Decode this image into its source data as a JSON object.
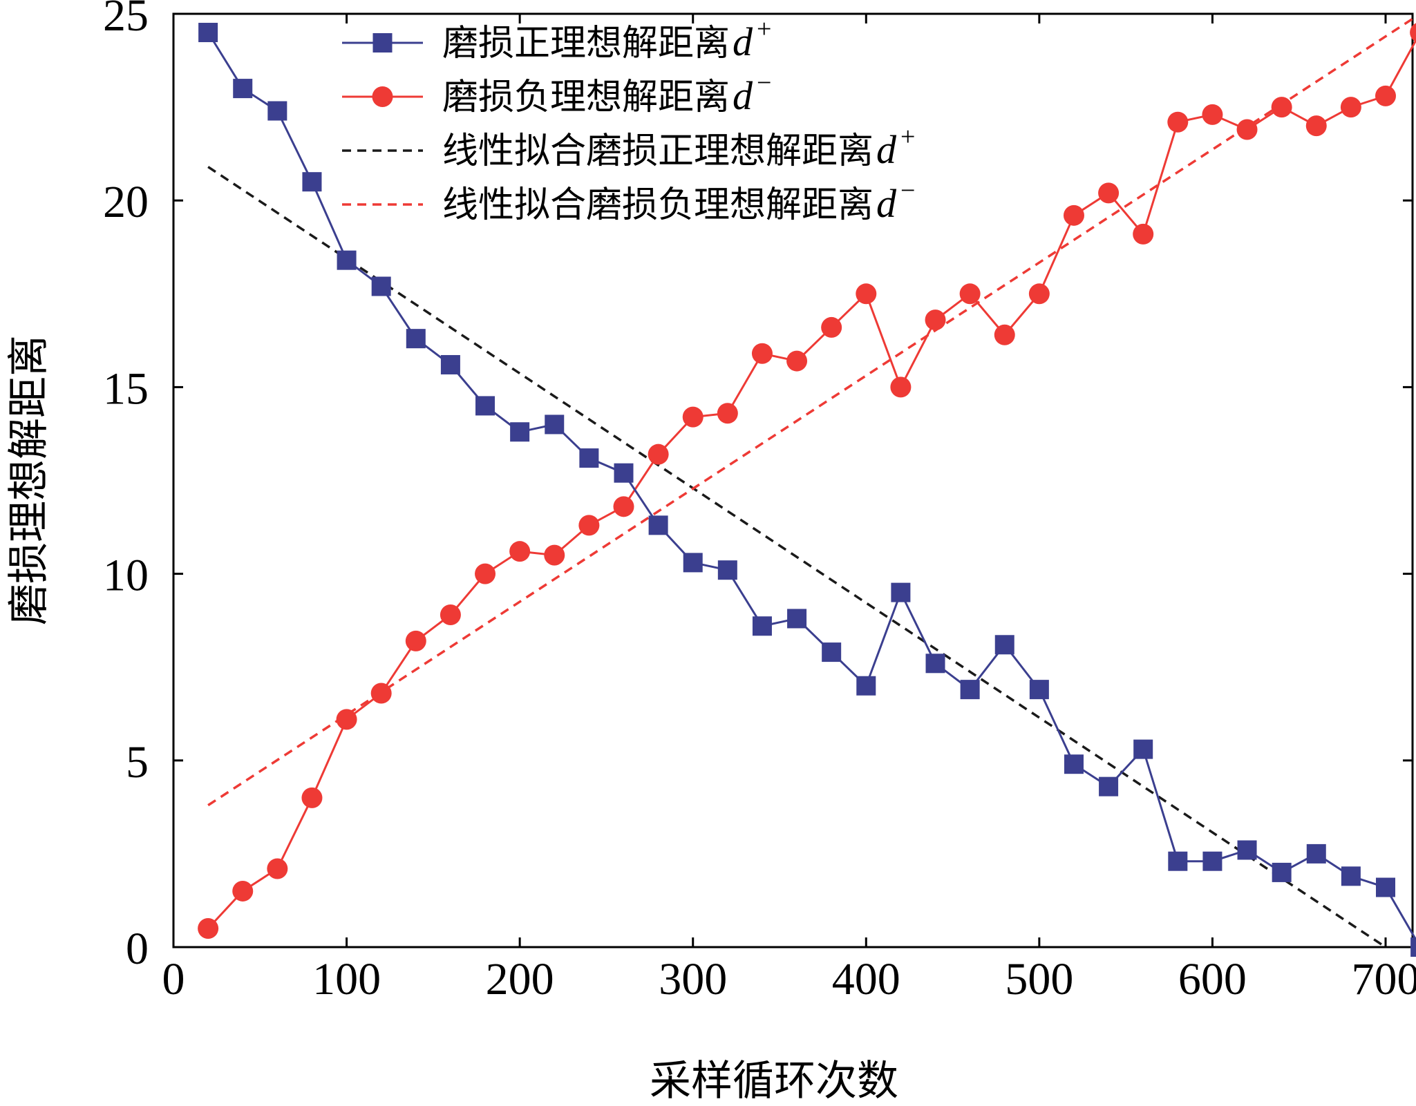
{
  "chart_data": {
    "type": "line",
    "xlabel": "采样循环次数",
    "ylabel": "磨损理想解距离",
    "xlim": [
      0,
      750
    ],
    "ylim": [
      0,
      25
    ],
    "xticks": [
      0,
      100,
      200,
      300,
      400,
      500,
      600,
      700
    ],
    "yticks": [
      0,
      5,
      10,
      15,
      20,
      25
    ],
    "legend_position": "top-center",
    "grid": false,
    "x": [
      20,
      40,
      60,
      80,
      100,
      120,
      140,
      160,
      180,
      200,
      220,
      240,
      260,
      280,
      300,
      320,
      340,
      360,
      380,
      400,
      420,
      440,
      460,
      480,
      500,
      520,
      540,
      560,
      580,
      600,
      620,
      640,
      660,
      680,
      700,
      720
    ],
    "series": [
      {
        "name": "磨损正理想解距离",
        "symbol": "d",
        "superscript": "+",
        "style": "line-square",
        "color": "#3b3f8f",
        "values": [
          24.5,
          23.0,
          22.4,
          20.5,
          18.4,
          17.7,
          16.3,
          15.6,
          14.5,
          13.8,
          14.0,
          13.1,
          12.7,
          11.3,
          10.3,
          10.1,
          8.6,
          8.8,
          7.9,
          7.0,
          9.5,
          7.6,
          6.9,
          8.1,
          6.9,
          4.9,
          4.3,
          5.3,
          2.3,
          2.3,
          2.6,
          2.0,
          2.5,
          1.9,
          1.6,
          0.0
        ]
      },
      {
        "name": "磨损负理想解距离",
        "symbol": "d",
        "superscript": "−",
        "style": "line-circle",
        "color": "#ee3a35",
        "values": [
          0.5,
          1.5,
          2.1,
          4.0,
          6.1,
          6.8,
          8.2,
          8.9,
          10.0,
          10.6,
          10.5,
          11.3,
          11.8,
          13.2,
          14.2,
          14.3,
          15.9,
          15.7,
          16.6,
          17.5,
          15.0,
          16.8,
          17.5,
          16.4,
          17.5,
          19.6,
          20.2,
          19.1,
          22.1,
          22.3,
          21.9,
          22.5,
          22.0,
          22.5,
          22.8,
          24.5
        ]
      },
      {
        "name": "线性拟合磨损正理想解距离",
        "symbol": "d",
        "superscript": "+",
        "style": "dashed",
        "color": "#1a1a1a",
        "x": [
          20,
          700
        ],
        "values": [
          20.9,
          0.0
        ]
      },
      {
        "name": "线性拟合磨损负理想解距离",
        "symbol": "d",
        "superscript": "−",
        "style": "dashed",
        "color": "#ee3a35",
        "x": [
          20,
          720
        ],
        "values": [
          3.8,
          25.0
        ]
      }
    ]
  }
}
